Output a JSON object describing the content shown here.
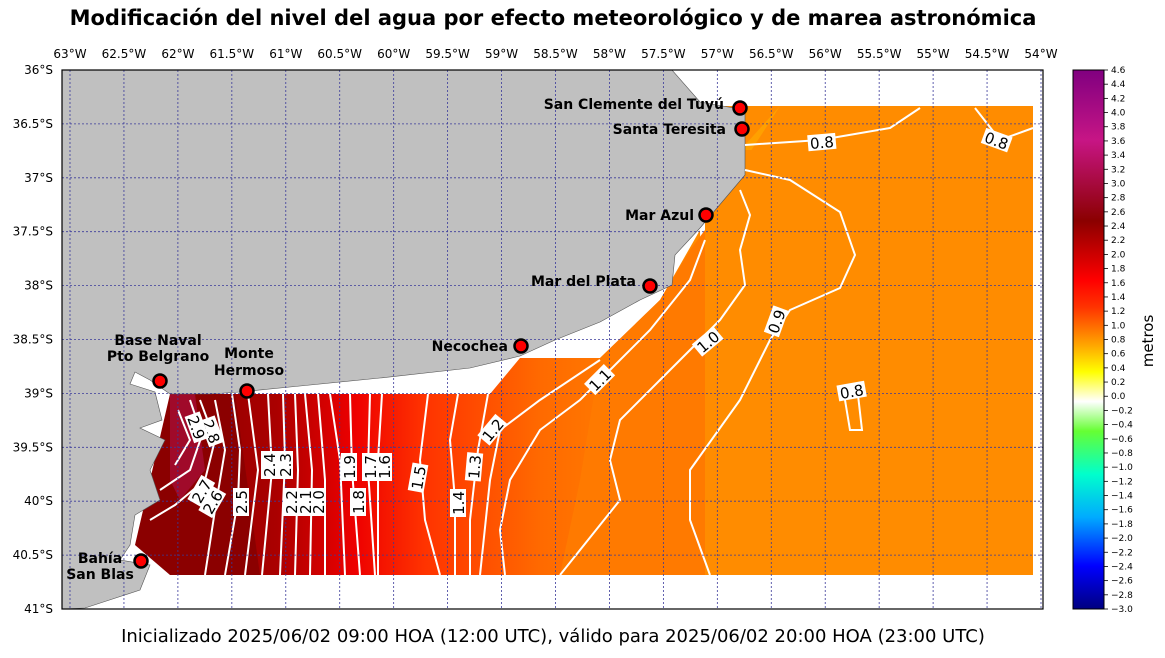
{
  "title": "Modificación del nivel del agua por efecto meteorológico y de marea astronómica",
  "footer": "Inicializado 2025/06/02 09:00 HOA (12:00 UTC), válido para 2025/06/02 20:00 HOA (23:00 UTC)",
  "lon_ticks": [
    "63°W",
    "62.5°W",
    "62°W",
    "61.5°W",
    "61°W",
    "60.5°W",
    "60°W",
    "59.5°W",
    "59°W",
    "58.5°W",
    "58°W",
    "57.5°W",
    "57°W",
    "56.5°W",
    "56°W",
    "55.5°W",
    "55°W",
    "54.5°W",
    "54°W"
  ],
  "lat_ticks": [
    "36°S",
    "36.5°S",
    "37°S",
    "37.5°S",
    "38°S",
    "38.5°S",
    "39°S",
    "39.5°S",
    "40°S",
    "40.5°S",
    "41°S"
  ],
  "colorbar": {
    "label": "metros",
    "ticks": [
      "4.6",
      "4.4",
      "4.2",
      "4.0",
      "3.8",
      "3.6",
      "3.4",
      "3.2",
      "3.0",
      "2.8",
      "2.6",
      "2.4",
      "2.2",
      "2.0",
      "1.8",
      "1.6",
      "1.4",
      "1.2",
      "1.0",
      "0.8",
      "0.6",
      "0.4",
      "0.2",
      "0.0",
      "−0.2",
      "−0.4",
      "−0.6",
      "−0.8",
      "−1.0",
      "−1.2",
      "−1.4",
      "−1.6",
      "−1.8",
      "−2.0",
      "−2.2",
      "−2.4",
      "−2.6",
      "−2.8",
      "−3.0"
    ],
    "colors": [
      "#000080",
      "#0000ff",
      "#00aaff",
      "#00ffcc",
      "#66ff33",
      "#ffffff",
      "#ffff00",
      "#ffa500",
      "#ff3300",
      "#ff0000",
      "#8b0000",
      "#c71585",
      "#800080"
    ]
  },
  "stations": [
    {
      "name": "San Clemente del Tuyú"
    },
    {
      "name": "Santa Teresita"
    },
    {
      "name": "Mar Azul"
    },
    {
      "name": "Mar del Plata"
    },
    {
      "name": "Necochea"
    },
    {
      "name": "Monte",
      "name2": "Hermoso"
    },
    {
      "name": "Base Naval",
      "name2": "Pto Belgrano"
    },
    {
      "name": "Bahía",
      "name2": "San Blas"
    }
  ],
  "contour_labels": [
    "0.8",
    "0.8",
    "0.9",
    "1.0",
    "1.1",
    "1.2",
    "0.8",
    "1.3",
    "1.4",
    "1.5",
    "1.6",
    "1.7",
    "1.8",
    "1.9",
    "2.0",
    "2.1",
    "2.2",
    "2.3",
    "2.4",
    "2.5",
    "2.6",
    "2.7",
    "2.8",
    "2.9"
  ],
  "colors": {
    "land": "#c0c0c0",
    "grid": "#3a3a9a",
    "station_fill": "#ff0000",
    "contour": "#ffffff"
  }
}
